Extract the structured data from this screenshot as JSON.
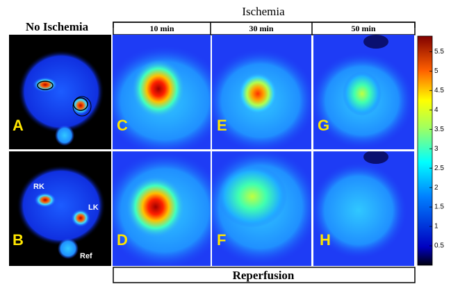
{
  "header": {
    "left": "No Ischemia",
    "top": "Ischemia",
    "bottom": "Reperfusion",
    "columns": [
      "10 min",
      "30 min",
      "50 min"
    ]
  },
  "panels": [
    "A",
    "B",
    "C",
    "D",
    "E",
    "F",
    "G",
    "H"
  ],
  "kidney_labels": [
    "RK",
    "LK",
    "Ref"
  ],
  "colorbar": {
    "lim": [
      0,
      5.9
    ],
    "ticks": [
      0.5,
      1,
      1.5,
      2,
      2.5,
      3,
      3.5,
      4,
      4.5,
      5,
      5.5
    ]
  }
}
